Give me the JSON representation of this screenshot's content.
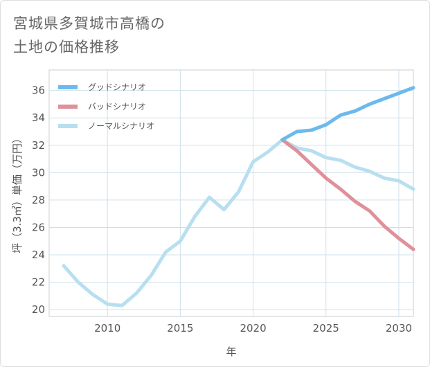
{
  "title_lines": [
    "宮城県多賀城市高橋の",
    "土地の価格推移"
  ],
  "chart_data": {
    "type": "line",
    "xlabel": "年",
    "ylabel": "坪（3.3㎡）単価（万円）",
    "xlim": [
      2006,
      2031
    ],
    "ylim": [
      19.5,
      37.5
    ],
    "xticks": [
      2010,
      2015,
      2020,
      2025,
      2030
    ],
    "yticks": [
      20,
      22,
      24,
      26,
      28,
      30,
      32,
      34,
      36
    ],
    "grid": true,
    "legend_position": "top-left",
    "series": [
      {
        "name": "グッドシナリオ",
        "color": "#6cb9ee",
        "x": [
          2022,
          2023,
          2024,
          2025,
          2026,
          2027,
          2028,
          2029,
          2030,
          2031
        ],
        "y": [
          32.4,
          33.0,
          33.1,
          33.5,
          34.2,
          34.5,
          35.0,
          35.4,
          35.8,
          36.2
        ]
      },
      {
        "name": "バッドシナリオ",
        "color": "#e0909a",
        "x": [
          2022,
          2023,
          2024,
          2025,
          2026,
          2027,
          2028,
          2029,
          2030,
          2031
        ],
        "y": [
          32.4,
          31.6,
          30.6,
          29.6,
          28.8,
          27.9,
          27.2,
          26.1,
          25.2,
          24.4
        ]
      },
      {
        "name": "ノーマルシナリオ",
        "color": "#b8dff0",
        "x": [
          2007,
          2008,
          2009,
          2010,
          2011,
          2012,
          2013,
          2014,
          2015,
          2016,
          2017,
          2018,
          2019,
          2020,
          2021,
          2022,
          2023,
          2024,
          2025,
          2026,
          2027,
          2028,
          2029,
          2030,
          2031
        ],
        "y": [
          23.2,
          22.0,
          21.1,
          20.4,
          20.3,
          21.2,
          22.5,
          24.2,
          25.0,
          26.8,
          28.2,
          27.3,
          28.6,
          30.8,
          31.5,
          32.4,
          31.8,
          31.6,
          31.1,
          30.9,
          30.4,
          30.1,
          29.6,
          29.4,
          28.8
        ]
      }
    ]
  }
}
